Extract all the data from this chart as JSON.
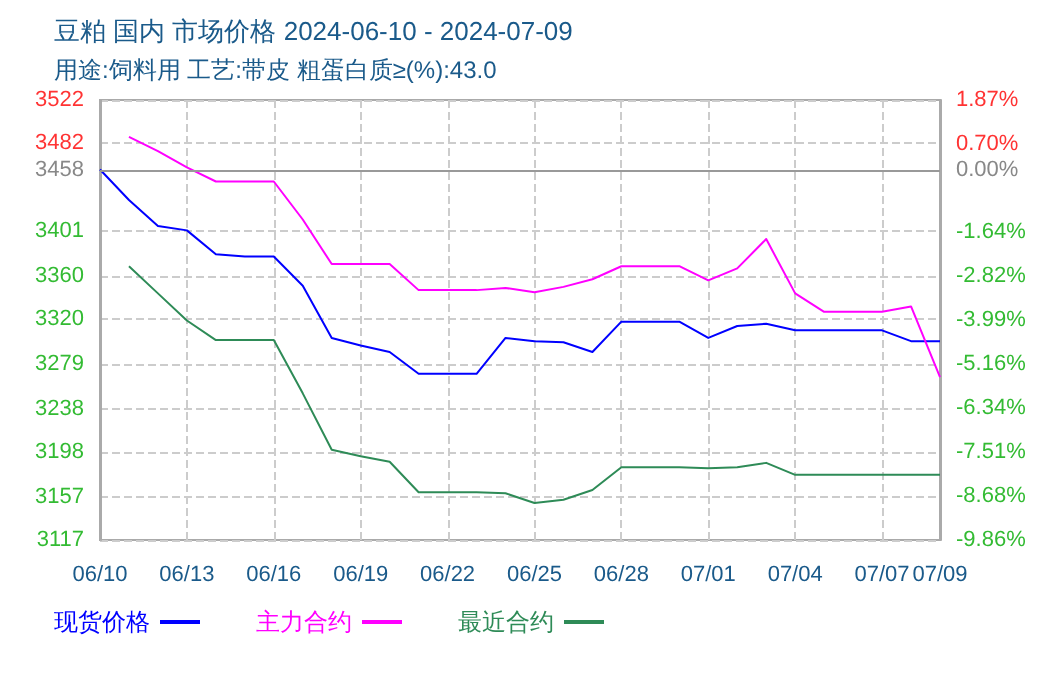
{
  "chart_data": {
    "type": "line",
    "title": "豆粕 国内 市场价格 2024-06-10 - 2024-07-09",
    "subtitle": "用途:饲料用 工艺:带皮 粗蛋白质≥(%):43.0",
    "x": [
      "2024-06-10",
      "2024-06-11",
      "2024-06-12",
      "2024-06-13",
      "2024-06-14",
      "2024-06-15",
      "2024-06-16",
      "2024-06-17",
      "2024-06-18",
      "2024-06-19",
      "2024-06-20",
      "2024-06-21",
      "2024-06-22",
      "2024-06-23",
      "2024-06-24",
      "2024-06-25",
      "2024-06-26",
      "2024-06-27",
      "2024-06-28",
      "2024-06-29",
      "2024-06-30",
      "2024-07-01",
      "2024-07-02",
      "2024-07-03",
      "2024-07-04",
      "2024-07-05",
      "2024-07-06",
      "2024-07-07",
      "2024-07-08",
      "2024-07-09"
    ],
    "series": [
      {
        "name": "现货价格",
        "color": "#0000ff",
        "values": [
          3458,
          3430,
          3406,
          3402,
          3380,
          3378,
          3378,
          3351,
          3303,
          3296,
          3290,
          3270,
          3270,
          3270,
          3303,
          3300,
          3299,
          3290,
          3318,
          3318,
          3318,
          3303,
          3314,
          3316,
          3310,
          3310,
          3310,
          3310,
          3300,
          3300
        ]
      },
      {
        "name": "主力合约",
        "color": "#ff00ff",
        "values": [
          null,
          3488,
          3475,
          3460,
          3447,
          3447,
          3447,
          3412,
          3371,
          3371,
          3371,
          3347,
          3347,
          3347,
          3349,
          3345,
          3350,
          3357,
          3369,
          3369,
          3369,
          3356,
          3367,
          3394,
          3344,
          3327,
          3327,
          3327,
          3332,
          3267
        ]
      },
      {
        "name": "最近合约",
        "color": "#2e8b57",
        "values": [
          null,
          3369,
          3344,
          3319,
          3301,
          3301,
          3301,
          3252,
          3200,
          3194,
          3189,
          3161,
          3161,
          3161,
          3160,
          3151,
          3154,
          3163,
          3184,
          3184,
          3184,
          3183,
          3184,
          3188,
          3177,
          3177,
          3177,
          3177,
          3177,
          3177
        ]
      }
    ],
    "xlim": [
      "2024-06-10",
      "2024-07-09"
    ],
    "xticks": [
      {
        "value": "2024-06-10",
        "label": "06/10"
      },
      {
        "value": "2024-06-13",
        "label": "06/13"
      },
      {
        "value": "2024-06-16",
        "label": "06/16"
      },
      {
        "value": "2024-06-19",
        "label": "06/19"
      },
      {
        "value": "2024-06-22",
        "label": "06/22"
      },
      {
        "value": "2024-06-25",
        "label": "06/25"
      },
      {
        "value": "2024-06-28",
        "label": "06/28"
      },
      {
        "value": "2024-07-01",
        "label": "07/01"
      },
      {
        "value": "2024-07-04",
        "label": "07/04"
      },
      {
        "value": "2024-07-07",
        "label": "07/07"
      },
      {
        "value": "2024-07-09",
        "label": "07/09"
      }
    ],
    "ylim": [
      3117,
      3522
    ],
    "yticks": [
      3117,
      3157,
      3198,
      3238,
      3279,
      3320,
      3360,
      3401,
      3458,
      3482,
      3522
    ],
    "y2lim": [
      -9.86,
      1.87
    ],
    "y2ticks": [
      {
        "value": -9.86,
        "label": "-9.86%"
      },
      {
        "value": -8.68,
        "label": "-8.68%"
      },
      {
        "value": -7.51,
        "label": "-7.51%"
      },
      {
        "value": -6.34,
        "label": "-6.34%"
      },
      {
        "value": -5.16,
        "label": "-5.16%"
      },
      {
        "value": -3.99,
        "label": "-3.99%"
      },
      {
        "value": -2.82,
        "label": "-2.82%"
      },
      {
        "value": -1.64,
        "label": "-1.64%"
      },
      {
        "value": 0.0,
        "label": "0.00%"
      },
      {
        "value": 0.7,
        "label": "0.70%"
      },
      {
        "value": 1.87,
        "label": "1.87%"
      }
    ],
    "ref_lines": [
      {
        "axis": "y",
        "value": 3458,
        "color": "#999999"
      }
    ],
    "grid": true,
    "legend": "bottom left",
    "marker": "none",
    "line_style": "solid"
  }
}
